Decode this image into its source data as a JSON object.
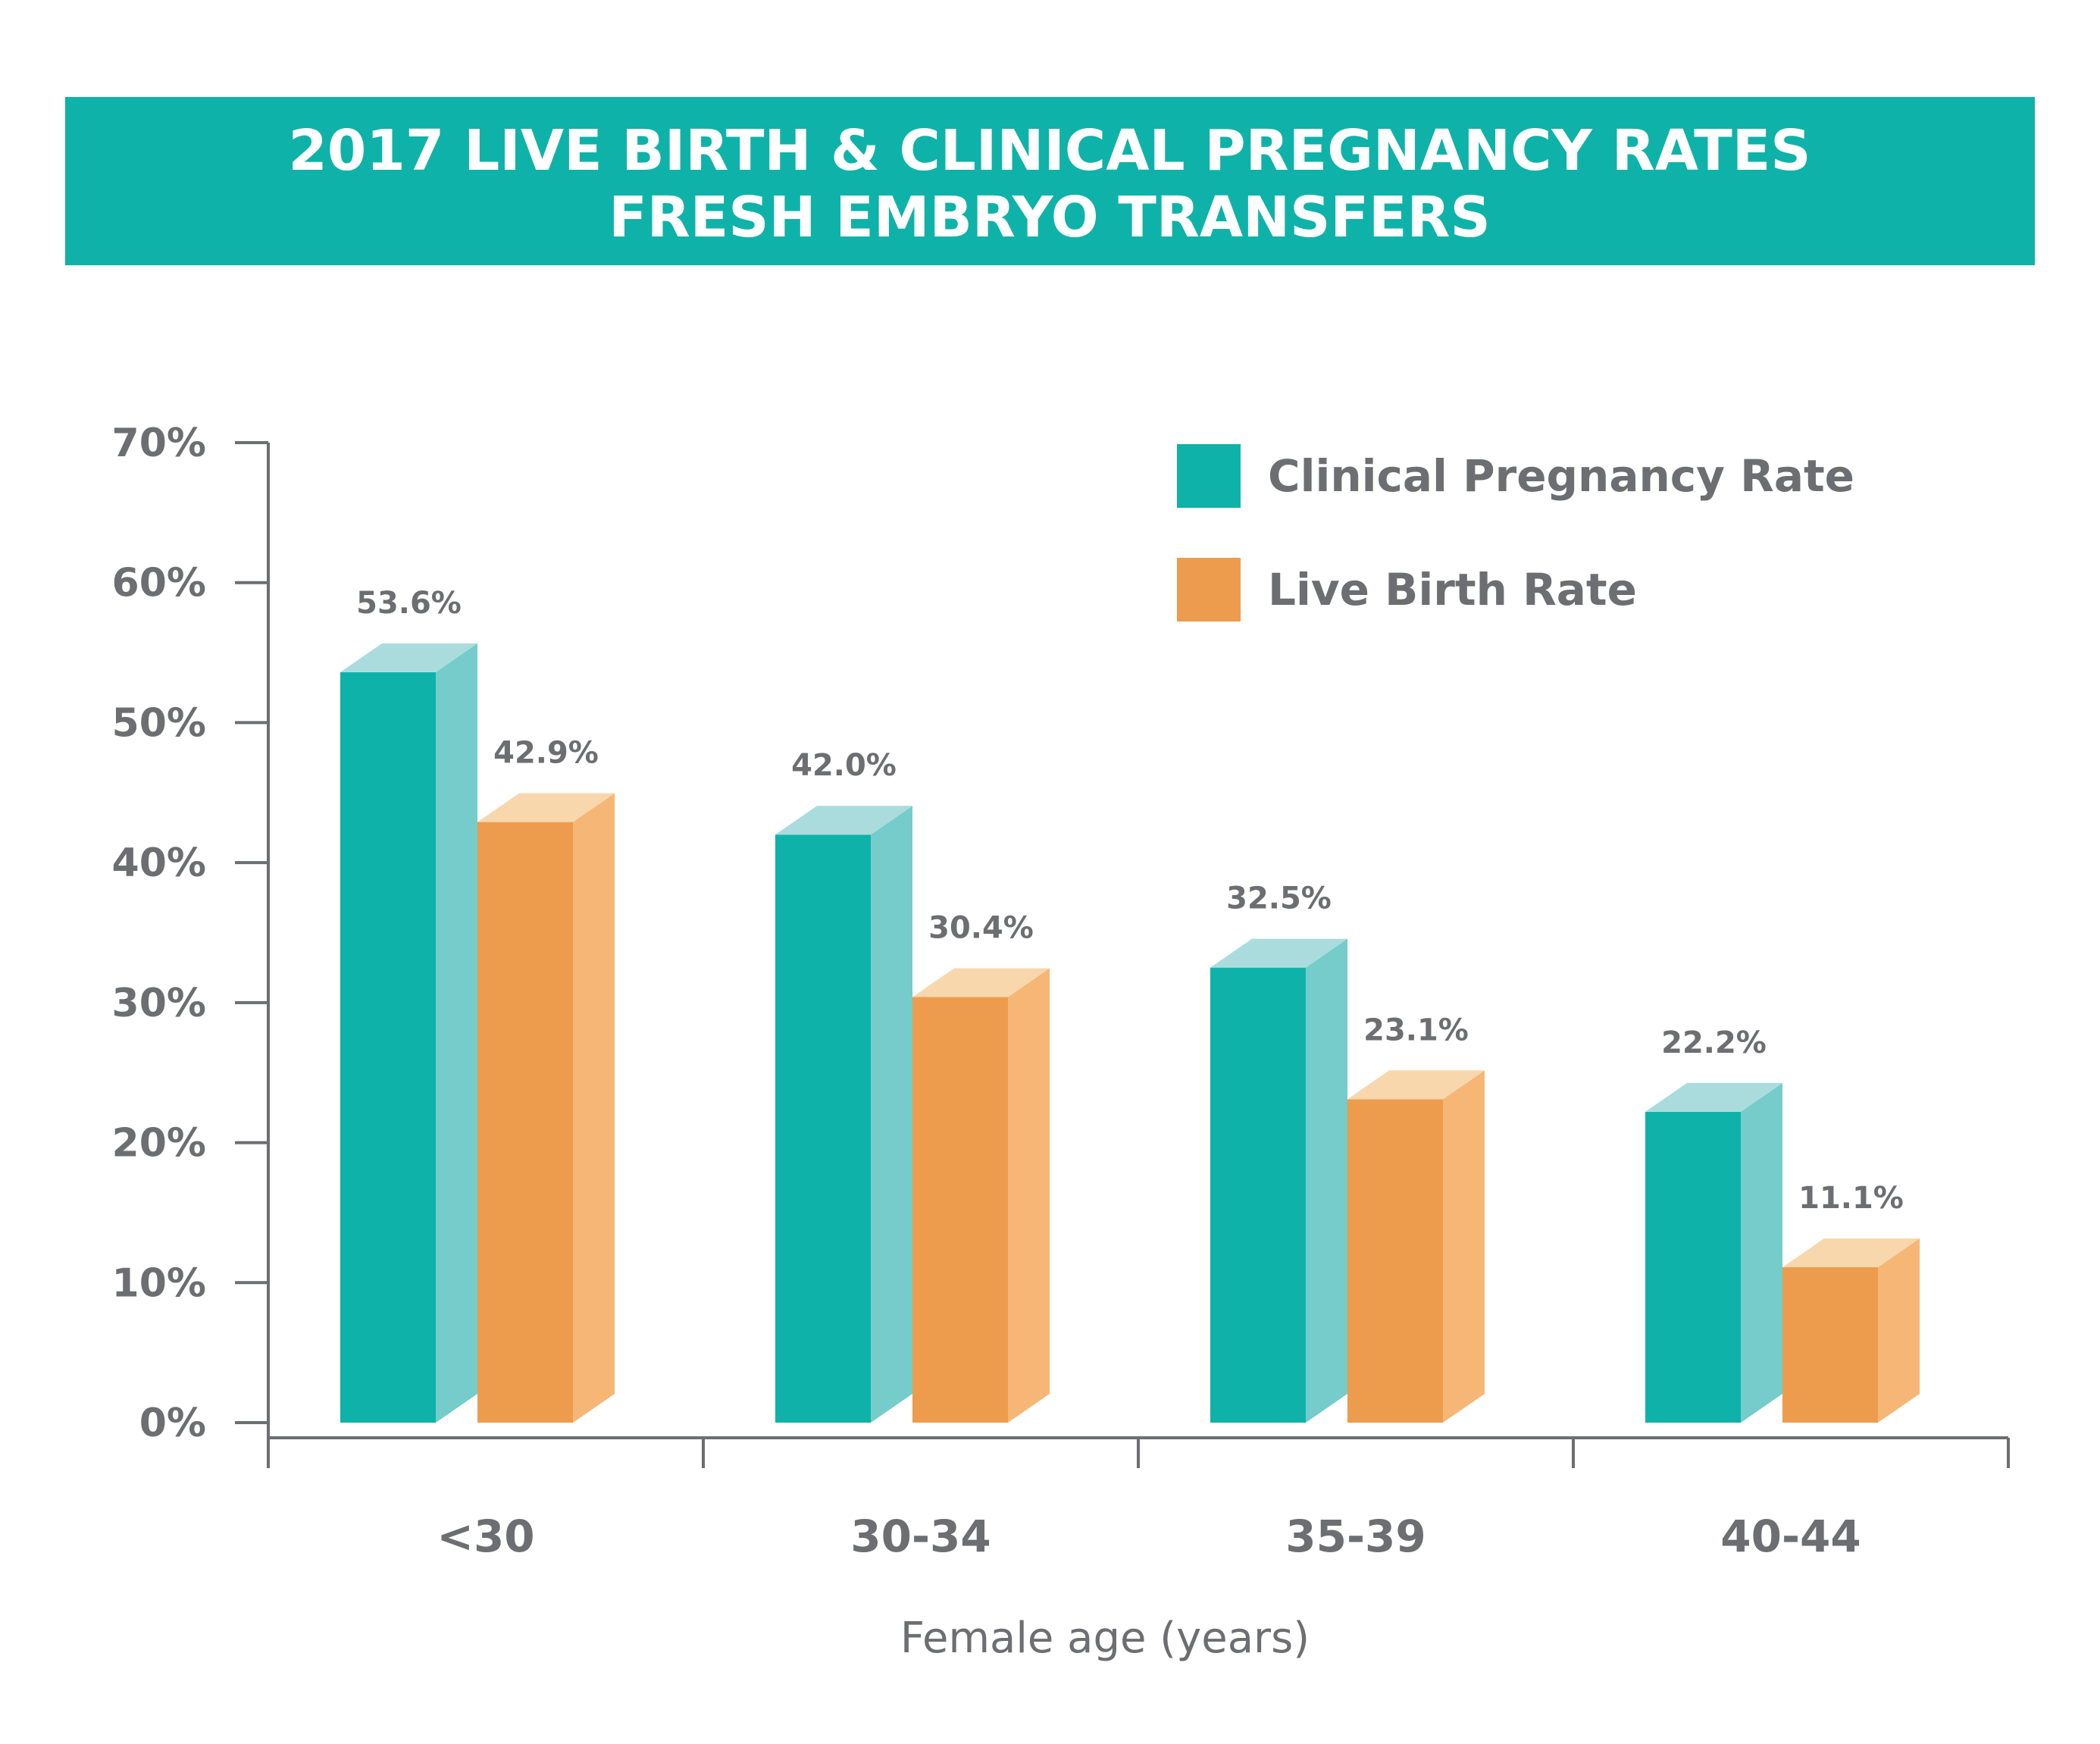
{
  "chart_data": {
    "type": "bar",
    "title_line1": "2017 LIVE BIRTH & CLINICAL PREGNANCY RATES",
    "title_line2": "FRESH EMBRYO TRANSFERS",
    "xlabel": "Female age (years)",
    "ylabel": "",
    "ylim": [
      0,
      70
    ],
    "yticks": [
      "0%",
      "10%",
      "20%",
      "30%",
      "40%",
      "50%",
      "60%",
      "70%"
    ],
    "categories": [
      "<30",
      "30-34",
      "35-39",
      "40-44"
    ],
    "series": [
      {
        "name": "Clinical Pregnancy Rate",
        "values": [
          53.6,
          42.0,
          32.5,
          22.2
        ],
        "labels": [
          "53.6%",
          "42.0%",
          "32.5%",
          "22.2%"
        ],
        "color": "#0fb2a8",
        "side_color": "#75ccca",
        "top_color": "#aadcdd"
      },
      {
        "name": "Live Birth Rate",
        "values": [
          42.9,
          30.4,
          23.1,
          11.1
        ],
        "labels": [
          "42.9%",
          "30.4%",
          "23.1%",
          "11.1%"
        ],
        "color": "#ec9c4c",
        "side_color": "#f6b676",
        "top_color": "#f8d7ad"
      }
    ],
    "legend_position": "top-right",
    "grid": false,
    "banner_color": "#0fb2a8",
    "axis_color": "#6d6e71"
  }
}
